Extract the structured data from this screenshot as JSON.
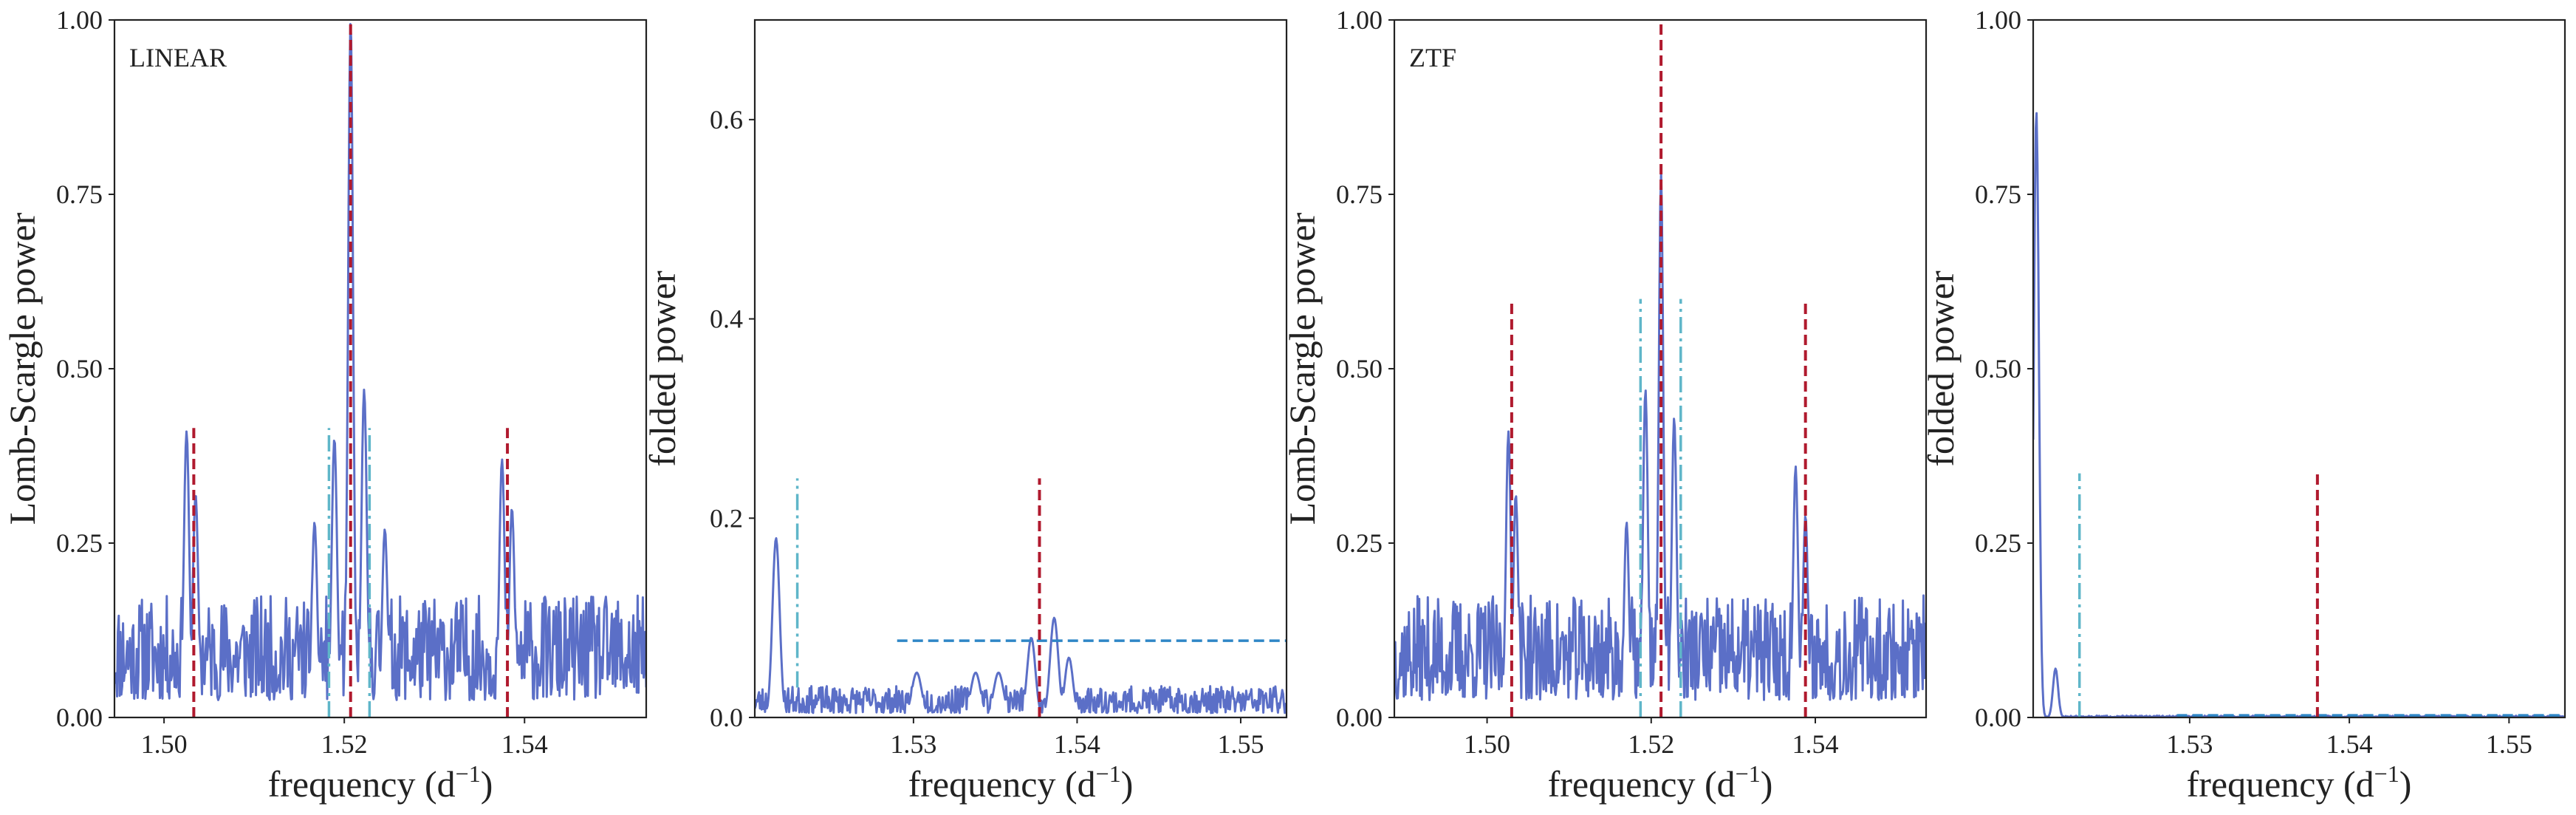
{
  "figure": {
    "colors": {
      "periodogram": "#5b6fc7",
      "main_marker": "#b01a2e",
      "secondary_marker": "#5fb6c9",
      "threshold": "#2f86c6",
      "axis": "#222222"
    }
  },
  "chart_data": [
    {
      "type": "line",
      "panel_text": "LINEAR",
      "xlabel": "frequency (d",
      "xlabel_sup": "−1",
      "xlabel_tail": ")",
      "ylabel": "Lomb-Scargle power",
      "xlim": [
        1.4945,
        1.5535
      ],
      "ylim": [
        0,
        1
      ],
      "xticks": [
        1.5,
        1.52,
        1.54
      ],
      "xtick_labels": [
        "1.50",
        "1.52",
        "1.54"
      ],
      "yticks": [
        0,
        0.25,
        0.5,
        0.75,
        1.0
      ],
      "ytick_labels": [
        "0.00",
        "0.25",
        "0.50",
        "0.75",
        "1.00"
      ],
      "noise_level": 0.1,
      "seed": 11,
      "peaks": [
        {
          "x": 1.5207,
          "y": 1.0,
          "w": 0.00028
        },
        {
          "x": 1.5025,
          "y": 0.41,
          "w": 0.0003
        },
        {
          "x": 1.5035,
          "y": 0.32,
          "w": 0.0003
        },
        {
          "x": 1.5375,
          "y": 0.37,
          "w": 0.0003
        },
        {
          "x": 1.5386,
          "y": 0.3,
          "w": 0.0003
        },
        {
          "x": 1.5189,
          "y": 0.4,
          "w": 0.0003
        },
        {
          "x": 1.5222,
          "y": 0.47,
          "w": 0.0003
        },
        {
          "x": 1.5167,
          "y": 0.28,
          "w": 0.0003
        },
        {
          "x": 1.5245,
          "y": 0.27,
          "w": 0.0003
        }
      ],
      "markers": [
        {
          "kind": "main",
          "x": 1.5207,
          "y0": 0,
          "y1": 1.0,
          "style": "dashed"
        },
        {
          "kind": "main",
          "x": 1.5033,
          "y0": 0,
          "y1": 0.415,
          "style": "dashed"
        },
        {
          "kind": "main",
          "x": 1.5381,
          "y0": 0,
          "y1": 0.415,
          "style": "dashed"
        },
        {
          "kind": "secondary",
          "x": 1.5183,
          "y0": 0,
          "y1": 0.415,
          "style": "dashdot"
        },
        {
          "kind": "secondary",
          "x": 1.5228,
          "y0": 0,
          "y1": 0.415,
          "style": "dashdot"
        }
      ],
      "threshold": null
    },
    {
      "type": "line",
      "panel_text": "",
      "xlabel": "frequency (d",
      "xlabel_sup": "−1",
      "xlabel_tail": ")",
      "ylabel": "folded power",
      "xlim": [
        1.5203,
        1.5528
      ],
      "ylim": [
        0,
        0.7
      ],
      "xticks": [
        1.53,
        1.54,
        1.55
      ],
      "xtick_labels": [
        "1.53",
        "1.54",
        "1.55"
      ],
      "yticks": [
        0,
        0.2,
        0.4,
        0.6
      ],
      "ytick_labels": [
        "0.0",
        "0.2",
        "0.4",
        "0.6"
      ],
      "noise_level": 0.018,
      "seed": 23,
      "peaks": [
        {
          "x": 1.5216,
          "y": 0.18,
          "w": 0.00022
        },
        {
          "x": 1.5372,
          "y": 0.08,
          "w": 0.00025
        },
        {
          "x": 1.5386,
          "y": 0.1,
          "w": 0.00025
        },
        {
          "x": 1.5395,
          "y": 0.06,
          "w": 0.00025
        },
        {
          "x": 1.5338,
          "y": 0.045,
          "w": 0.0003
        },
        {
          "x": 1.5352,
          "y": 0.045,
          "w": 0.0003
        },
        {
          "x": 1.5302,
          "y": 0.045,
          "w": 0.0003
        }
      ],
      "markers": [
        {
          "kind": "secondary",
          "x": 1.5229,
          "y0": 0.03,
          "y1": 0.24,
          "style": "dashdot"
        },
        {
          "kind": "main",
          "x": 1.5377,
          "y0": 0.0,
          "y1": 0.24,
          "style": "dashed"
        }
      ],
      "threshold": {
        "y": 0.077,
        "x0": 1.529,
        "x1": 1.5528
      }
    },
    {
      "type": "line",
      "panel_text": "ZTF",
      "xlabel": "frequency (d",
      "xlabel_sup": "−1",
      "xlabel_tail": ")",
      "ylabel": "Lomb-Scargle power",
      "xlim": [
        1.4887,
        1.5535
      ],
      "ylim": [
        0,
        1
      ],
      "xticks": [
        1.5,
        1.52,
        1.54
      ],
      "xtick_labels": [
        "1.50",
        "1.52",
        "1.54"
      ],
      "yticks": [
        0,
        0.25,
        0.5,
        0.75,
        1.0
      ],
      "ytick_labels": [
        "0.00",
        "0.25",
        "0.50",
        "0.75",
        "1.00"
      ],
      "noise_level": 0.1,
      "seed": 37,
      "peaks": [
        {
          "x": 1.5212,
          "y": 0.78,
          "w": 0.00028
        },
        {
          "x": 1.5026,
          "y": 0.41,
          "w": 0.0003
        },
        {
          "x": 1.5035,
          "y": 0.32,
          "w": 0.0003
        },
        {
          "x": 1.5376,
          "y": 0.36,
          "w": 0.0003
        },
        {
          "x": 1.5388,
          "y": 0.29,
          "w": 0.0003
        },
        {
          "x": 1.5193,
          "y": 0.47,
          "w": 0.0003
        },
        {
          "x": 1.5228,
          "y": 0.43,
          "w": 0.0003
        },
        {
          "x": 1.517,
          "y": 0.28,
          "w": 0.0003
        }
      ],
      "markers": [
        {
          "kind": "main",
          "x": 1.5212,
          "y0": 0,
          "y1": 1.0,
          "style": "dashed"
        },
        {
          "kind": "main",
          "x": 1.503,
          "y0": 0,
          "y1": 0.6,
          "style": "dashed"
        },
        {
          "kind": "main",
          "x": 1.5388,
          "y0": 0,
          "y1": 0.6,
          "style": "dashed"
        },
        {
          "kind": "secondary",
          "x": 1.5187,
          "y0": 0,
          "y1": 0.6,
          "style": "dashdot"
        },
        {
          "kind": "secondary",
          "x": 1.5236,
          "y0": 0,
          "y1": 0.6,
          "style": "dashdot"
        }
      ],
      "threshold": null
    },
    {
      "type": "line",
      "panel_text": "",
      "xlabel": "frequency (d",
      "xlabel_sup": "−1",
      "xlabel_tail": ")",
      "ylabel": "folded power",
      "xlim": [
        1.5202,
        1.5535
      ],
      "ylim": [
        0,
        1
      ],
      "xticks": [
        1.53,
        1.54,
        1.55
      ],
      "xtick_labels": [
        "1.53",
        "1.54",
        "1.55"
      ],
      "yticks": [
        0,
        0.25,
        0.5,
        0.75,
        1.0
      ],
      "ytick_labels": [
        "0.00",
        "0.25",
        "0.50",
        "0.75",
        "1.00"
      ],
      "noise_level": 0.0015,
      "seed": 51,
      "peaks": [
        {
          "x": 1.5204,
          "y": 0.87,
          "w": 0.00016
        },
        {
          "x": 1.5216,
          "y": 0.07,
          "w": 0.00016
        }
      ],
      "markers": [
        {
          "kind": "secondary",
          "x": 1.5231,
          "y0": 0,
          "y1": 0.35,
          "style": "dashdot"
        },
        {
          "kind": "main",
          "x": 1.538,
          "y0": 0,
          "y1": 0.35,
          "style": "dashed"
        }
      ],
      "threshold": {
        "y": 0.003,
        "x0": 1.5292,
        "x1": 1.5535
      }
    }
  ]
}
